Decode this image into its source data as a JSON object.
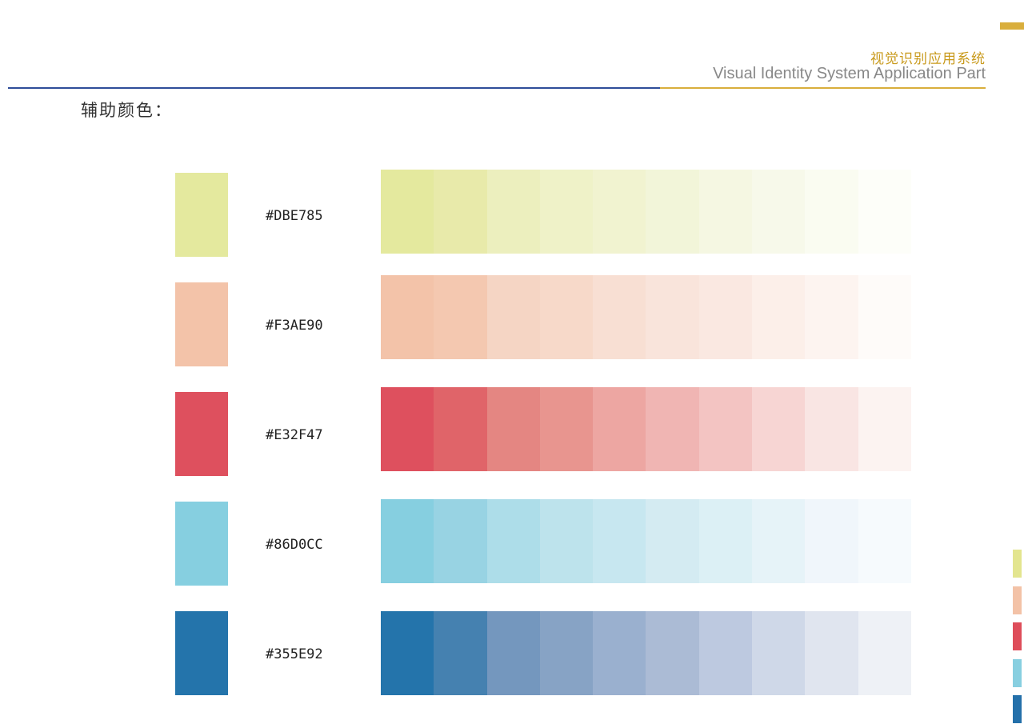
{
  "header": {
    "title_cn": "视觉识别应用系统",
    "title_en": "Visual Identity System Application Part"
  },
  "section": {
    "title": "辅助颜色："
  },
  "colors": [
    {
      "hex_label": "#DBE785",
      "swatch": "#e4e99e",
      "steps": [
        "#e4e99e",
        "#e8eaaa",
        "#ecefbe",
        "#eff2c8",
        "#f1f3d0",
        "#f2f5d9",
        "#f5f7e2",
        "#f7f9ea",
        "#fafcf1",
        "#fdfef9"
      ]
    },
    {
      "hex_label": "#F3AE90",
      "swatch": "#f3c3a9",
      "steps": [
        "#f3c3a9",
        "#f4c8b0",
        "#f5d5c4",
        "#f7d9c9",
        "#f8dfd3",
        "#f9e4db",
        "#fae8e1",
        "#fcefe9",
        "#fdf4f0",
        "#fefbf9"
      ]
    },
    {
      "hex_label": "#E32F47",
      "swatch": "#de505e",
      "steps": [
        "#de505e",
        "#e06469",
        "#e48682",
        "#e8958f",
        "#eda6a2",
        "#f0b5b3",
        "#f3c4c2",
        "#f7d5d3",
        "#f9e5e3",
        "#fcf3f1"
      ]
    },
    {
      "hex_label": "#86D0CC",
      "swatch": "#86cfe0",
      "steps": [
        "#86cfe0",
        "#98d3e3",
        "#addde9",
        "#bde3ec",
        "#c7e7f0",
        "#d4ebf2",
        "#dcf0f5",
        "#e6f3f8",
        "#f0f6fb",
        "#f6fafd"
      ]
    },
    {
      "hex_label": "#355E92",
      "swatch": "#2474ab",
      "steps": [
        "#2474ab",
        "#4581b0",
        "#7497be",
        "#87a3c5",
        "#9ab0cf",
        "#abbbd5",
        "#bdc9e0",
        "#cfd8e8",
        "#e0e5ef",
        "#eef1f6"
      ]
    }
  ],
  "side_tabs": [
    "#e3e58f",
    "#f3c2a7",
    "#de4d5a",
    "#88cfe0",
    "#2470aa"
  ]
}
